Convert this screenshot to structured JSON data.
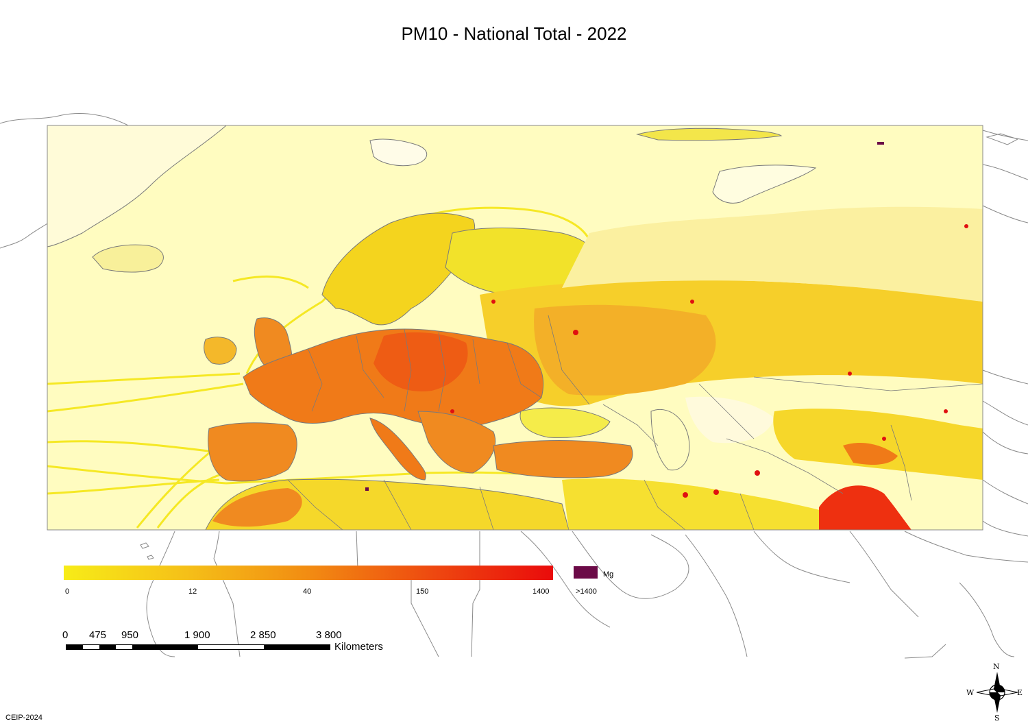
{
  "title": "PM10 - National Total - 2022",
  "legend": {
    "ticks": [
      "0",
      "12",
      "40",
      "150",
      "1400"
    ],
    "over_label": ">1400",
    "unit": "Mg",
    "gradient_colors": [
      "#f7ec18",
      "#f5c018",
      "#f28c12",
      "#ee4a10",
      "#ea0b0b"
    ],
    "over_color": "#6b0a47"
  },
  "scale_bar": {
    "labels": [
      "0",
      "475",
      "950",
      "1 900",
      "2 850",
      "3 800"
    ],
    "unit": "Kilometers"
  },
  "compass": {
    "n": "N",
    "s": "S",
    "e": "E",
    "w": "W"
  },
  "credit": "CEIP-2024",
  "colors": {
    "sea": "#fffcc0",
    "low": "#f5ec1a",
    "mid": "#f09a1c",
    "high": "#ee5a1a",
    "outline": "#7a7a7a"
  }
}
